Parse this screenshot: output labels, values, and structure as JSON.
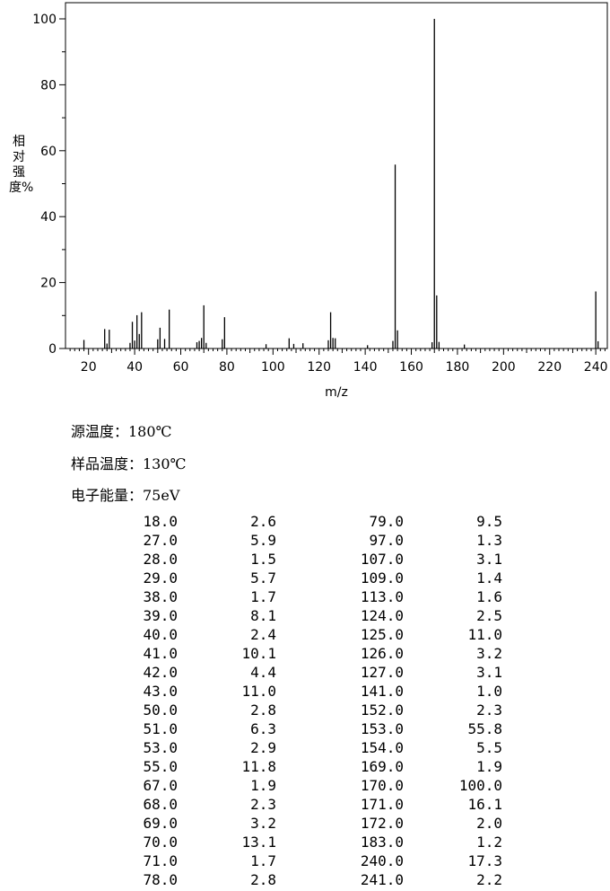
{
  "chart_data": {
    "type": "bar",
    "xlabel": "m/z",
    "ylabel": "相对强度%",
    "xlim": [
      10,
      245
    ],
    "ylim": [
      0,
      100
    ],
    "xticks": [
      20,
      40,
      60,
      80,
      100,
      120,
      140,
      160,
      180,
      200,
      220,
      240
    ],
    "yticks": [
      0,
      20,
      40,
      60,
      80,
      100
    ],
    "grid": false,
    "peaks": [
      [
        18.0,
        2.6
      ],
      [
        27.0,
        5.9
      ],
      [
        28.0,
        1.5
      ],
      [
        29.0,
        5.7
      ],
      [
        38.0,
        1.7
      ],
      [
        39.0,
        8.1
      ],
      [
        40.0,
        2.4
      ],
      [
        41.0,
        10.1
      ],
      [
        42.0,
        4.4
      ],
      [
        43.0,
        11.0
      ],
      [
        50.0,
        2.8
      ],
      [
        51.0,
        6.3
      ],
      [
        53.0,
        2.9
      ],
      [
        55.0,
        11.8
      ],
      [
        67.0,
        1.9
      ],
      [
        68.0,
        2.3
      ],
      [
        69.0,
        3.2
      ],
      [
        70.0,
        13.1
      ],
      [
        71.0,
        1.7
      ],
      [
        78.0,
        2.8
      ],
      [
        79.0,
        9.5
      ],
      [
        97.0,
        1.3
      ],
      [
        107.0,
        3.1
      ],
      [
        109.0,
        1.4
      ],
      [
        113.0,
        1.6
      ],
      [
        124.0,
        2.5
      ],
      [
        125.0,
        11.0
      ],
      [
        126.0,
        3.2
      ],
      [
        127.0,
        3.1
      ],
      [
        141.0,
        1.0
      ],
      [
        152.0,
        2.3
      ],
      [
        153.0,
        55.8
      ],
      [
        154.0,
        5.5
      ],
      [
        169.0,
        1.9
      ],
      [
        170.0,
        100.0
      ],
      [
        171.0,
        16.1
      ],
      [
        172.0,
        2.0
      ],
      [
        183.0,
        1.2
      ],
      [
        240.0,
        17.3
      ],
      [
        241.0,
        2.2
      ]
    ]
  },
  "conditions": {
    "source_temp": "源温度：180℃",
    "sample_temp": "样品温度：130℃",
    "electron_energy": "电子能量：75eV"
  },
  "peak_table": {
    "left": [
      [
        "18.0",
        "2.6"
      ],
      [
        "27.0",
        "5.9"
      ],
      [
        "28.0",
        "1.5"
      ],
      [
        "29.0",
        "5.7"
      ],
      [
        "38.0",
        "1.7"
      ],
      [
        "39.0",
        "8.1"
      ],
      [
        "40.0",
        "2.4"
      ],
      [
        "41.0",
        "10.1"
      ],
      [
        "42.0",
        "4.4"
      ],
      [
        "43.0",
        "11.0"
      ],
      [
        "50.0",
        "2.8"
      ],
      [
        "51.0",
        "6.3"
      ],
      [
        "53.0",
        "2.9"
      ],
      [
        "55.0",
        "11.8"
      ],
      [
        "67.0",
        "1.9"
      ],
      [
        "68.0",
        "2.3"
      ],
      [
        "69.0",
        "3.2"
      ],
      [
        "70.0",
        "13.1"
      ],
      [
        "71.0",
        "1.7"
      ],
      [
        "78.0",
        "2.8"
      ]
    ],
    "right": [
      [
        "79.0",
        "9.5"
      ],
      [
        "97.0",
        "1.3"
      ],
      [
        "107.0",
        "3.1"
      ],
      [
        "109.0",
        "1.4"
      ],
      [
        "113.0",
        "1.6"
      ],
      [
        "124.0",
        "2.5"
      ],
      [
        "125.0",
        "11.0"
      ],
      [
        "126.0",
        "3.2"
      ],
      [
        "127.0",
        "3.1"
      ],
      [
        "141.0",
        "1.0"
      ],
      [
        "152.0",
        "2.3"
      ],
      [
        "153.0",
        "55.8"
      ],
      [
        "154.0",
        "5.5"
      ],
      [
        "169.0",
        "1.9"
      ],
      [
        "170.0",
        "100.0"
      ],
      [
        "171.0",
        "16.1"
      ],
      [
        "172.0",
        "2.0"
      ],
      [
        "183.0",
        "1.2"
      ],
      [
        "240.0",
        "17.3"
      ],
      [
        "241.0",
        "2.2"
      ]
    ]
  }
}
